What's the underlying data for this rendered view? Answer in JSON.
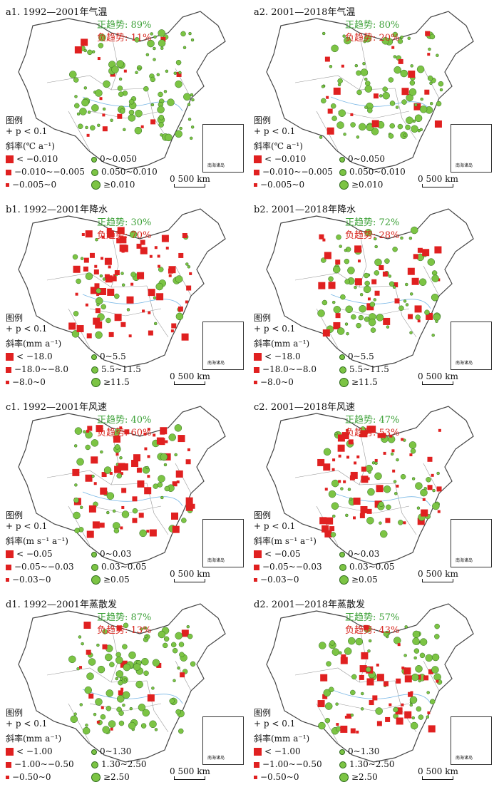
{
  "colors": {
    "positive": "#3fa23a",
    "negative": "#d7261e",
    "square": "#e02020",
    "circle": "#7cc444"
  },
  "legend_common": {
    "title": "图例",
    "p_note": "+ p < 0.1",
    "inset_label": "南海诸岛",
    "scale_zero": "0",
    "scale_dist": "500 km"
  },
  "panels": [
    {
      "title": "a1. 1992—2001年气温",
      "pos": "正趋势: 89%",
      "neg": "负趋势: 11%",
      "slope_label": "斜率(℃ a⁻¹)",
      "sq": [
        "< −0.010",
        "−0.010~−0.005",
        "−0.005~0"
      ],
      "ci": [
        "0~0.050",
        "0.050~0.010",
        "≥0.010"
      ],
      "pos_frac": 0.89
    },
    {
      "title": "a2. 2001—2018年气温",
      "pos": "正趋势: 80%",
      "neg": "负趋势: 20%",
      "slope_label": "斜率(℃ a⁻¹)",
      "sq": [
        "< −0.010",
        "−0.010~−0.005",
        "−0.005~0"
      ],
      "ci": [
        "0~0.050",
        "0.050~0.010",
        "≥0.010"
      ],
      "pos_frac": 0.8
    },
    {
      "title": "b1. 1992—2001年降水",
      "pos": "正趋势: 30%",
      "neg": "负趋势: 70%",
      "slope_label": "斜率(mm a⁻¹)",
      "sq": [
        "< −18.0",
        "−18.0~−8.0",
        "−8.0~0"
      ],
      "ci": [
        "0~5.5",
        "5.5~11.5",
        "≥11.5"
      ],
      "pos_frac": 0.3
    },
    {
      "title": "b2. 2001—2018年降水",
      "pos": "正趋势: 72%",
      "neg": "负趋势: 28%",
      "slope_label": "斜率(mm a⁻¹)",
      "sq": [
        "< −18.0",
        "−18.0~−8.0",
        "−8.0~0"
      ],
      "ci": [
        "0~5.5",
        "5.5~11.5",
        "≥11.5"
      ],
      "pos_frac": 0.72
    },
    {
      "title": "c1. 1992—2001年风速",
      "pos": "正趋势: 40%",
      "neg": "负趋势: 60%",
      "slope_label": "斜率(m s⁻¹ a⁻¹)",
      "sq": [
        "< −0.05",
        "−0.05~−0.03",
        "−0.03~0"
      ],
      "ci": [
        "0~0.03",
        "0.03~0.05",
        "≥0.05"
      ],
      "pos_frac": 0.4
    },
    {
      "title": "c2. 2001—2018年风速",
      "pos": "正趋势: 47%",
      "neg": "负趋势: 53%",
      "slope_label": "斜率(m s⁻¹ a⁻¹)",
      "sq": [
        "< −0.05",
        "−0.05~−0.03",
        "−0.03~0"
      ],
      "ci": [
        "0~0.03",
        "0.03~0.05",
        "≥0.05"
      ],
      "pos_frac": 0.47
    },
    {
      "title": "d1. 1992—2001年蒸散发",
      "pos": "正趋势: 87%",
      "neg": "负趋势: 13%",
      "slope_label": "斜率(mm a⁻¹)",
      "sq": [
        "< −1.00",
        "−1.00~−0.50",
        "−0.50~0"
      ],
      "ci": [
        "0~1.30",
        "1.30~2.50",
        "≥2.50"
      ],
      "pos_frac": 0.87
    },
    {
      "title": "d2. 2001—2018年蒸散发",
      "pos": "正趋势: 57%",
      "neg": "负趋势: 43%",
      "slope_label": "斜率(mm a⁻¹)",
      "sq": [
        "< −1.00",
        "−1.00~−0.50",
        "−0.50~0"
      ],
      "ci": [
        "0~1.30",
        "1.30~2.50",
        "≥2.50"
      ],
      "pos_frac": 0.57
    }
  ]
}
